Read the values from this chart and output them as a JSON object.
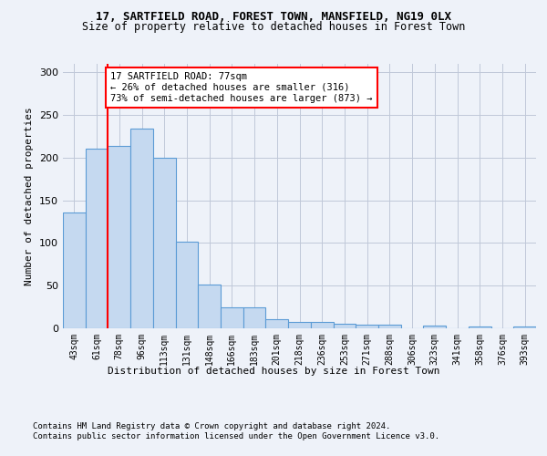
{
  "title_line1": "17, SARTFIELD ROAD, FOREST TOWN, MANSFIELD, NG19 0LX",
  "title_line2": "Size of property relative to detached houses in Forest Town",
  "xlabel": "Distribution of detached houses by size in Forest Town",
  "ylabel": "Number of detached properties",
  "bar_values": [
    136,
    211,
    214,
    234,
    200,
    102,
    51,
    25,
    25,
    11,
    8,
    8,
    5,
    4,
    4,
    0,
    3,
    0,
    2,
    0,
    2
  ],
  "bar_labels": [
    "43sqm",
    "61sqm",
    "78sqm",
    "96sqm",
    "113sqm",
    "131sqm",
    "148sqm",
    "166sqm",
    "183sqm",
    "201sqm",
    "218sqm",
    "236sqm",
    "253sqm",
    "271sqm",
    "288sqm",
    "306sqm",
    "323sqm",
    "341sqm",
    "358sqm",
    "376sqm",
    "393sqm"
  ],
  "bar_color": "#c5d9f0",
  "bar_edge_color": "#5b9bd5",
  "annotation_box_line1": "17 SARTFIELD ROAD: 77sqm",
  "annotation_box_line2": "← 26% of detached houses are smaller (316)",
  "annotation_box_line3": "73% of semi-detached houses are larger (873) →",
  "red_line_x": 1.5,
  "footer_line1": "Contains HM Land Registry data © Crown copyright and database right 2024.",
  "footer_line2": "Contains public sector information licensed under the Open Government Licence v3.0.",
  "ylim": [
    0,
    310
  ],
  "yticks": [
    0,
    50,
    100,
    150,
    200,
    250,
    300
  ],
  "bg_color": "#eef2f9",
  "plot_bg_color": "#eef2f9"
}
